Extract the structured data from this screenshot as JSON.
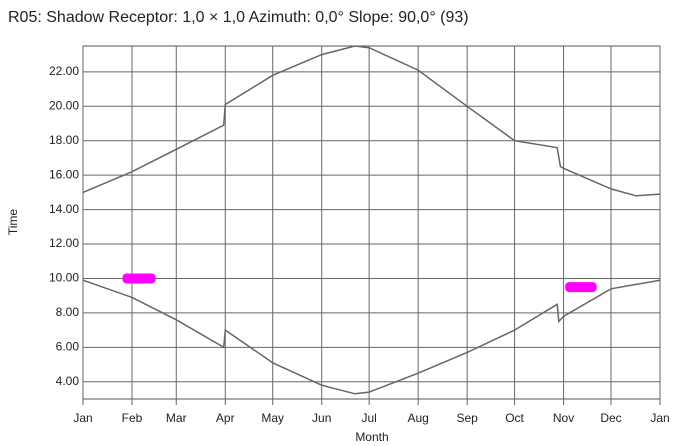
{
  "chart_data": {
    "type": "line",
    "title": "R05: Shadow  Receptor: 1,0 × 1,0  Azimuth: 0,0°  Slope: 90,0° (93)",
    "xlabel": "Month",
    "ylabel": "Time",
    "xlim": [
      0,
      365
    ],
    "xticks": [
      {
        "value": 0,
        "label": "Jan"
      },
      {
        "value": 31,
        "label": "Feb"
      },
      {
        "value": 59,
        "label": "Mar"
      },
      {
        "value": 90,
        "label": "Apr"
      },
      {
        "value": 120,
        "label": "May"
      },
      {
        "value": 151,
        "label": "Jun"
      },
      {
        "value": 181,
        "label": "Jul"
      },
      {
        "value": 212,
        "label": "Aug"
      },
      {
        "value": 243,
        "label": "Sep"
      },
      {
        "value": 273,
        "label": "Oct"
      },
      {
        "value": 304,
        "label": "Nov"
      },
      {
        "value": 334,
        "label": "Dec"
      },
      {
        "value": 365,
        "label": "Jan"
      }
    ],
    "ylim": [
      3,
      23.5
    ],
    "yticks": [
      {
        "value": 4,
        "label": "4.00"
      },
      {
        "value": 6,
        "label": "6.00"
      },
      {
        "value": 8,
        "label": "8.00"
      },
      {
        "value": 10,
        "label": "10.00"
      },
      {
        "value": 12,
        "label": "12.00"
      },
      {
        "value": 14,
        "label": "14.00"
      },
      {
        "value": 16,
        "label": "16.00"
      },
      {
        "value": 18,
        "label": "18.00"
      },
      {
        "value": 20,
        "label": "20.00"
      },
      {
        "value": 22,
        "label": "22.00"
      }
    ],
    "grid": true,
    "series": [
      {
        "color": "#666666",
        "x": [
          0,
          31,
          59,
          89,
          90,
          120,
          151,
          172,
          181,
          212,
          243,
          273,
          300,
          302,
          304,
          334,
          350,
          365
        ],
        "values": [
          15.0,
          16.2,
          17.5,
          18.9,
          20.1,
          21.8,
          23.0,
          23.5,
          23.4,
          22.1,
          20.0,
          18.0,
          17.6,
          16.5,
          16.4,
          15.2,
          14.8,
          14.9
        ]
      },
      {
        "color": "#666666",
        "x": [
          0,
          31,
          59,
          89,
          90,
          120,
          151,
          172,
          181,
          212,
          243,
          273,
          300,
          301,
          304,
          334,
          365
        ],
        "values": [
          9.9,
          8.9,
          7.6,
          6.0,
          7.0,
          5.1,
          3.8,
          3.3,
          3.4,
          4.5,
          5.7,
          7.0,
          8.5,
          7.5,
          7.8,
          9.4,
          9.9
        ]
      }
    ],
    "events_color": "#ff00ff",
    "events": [
      {
        "x": [
          25,
          46
        ],
        "y": 10.0
      },
      {
        "x": [
          305,
          325
        ],
        "y": 9.5
      }
    ]
  }
}
